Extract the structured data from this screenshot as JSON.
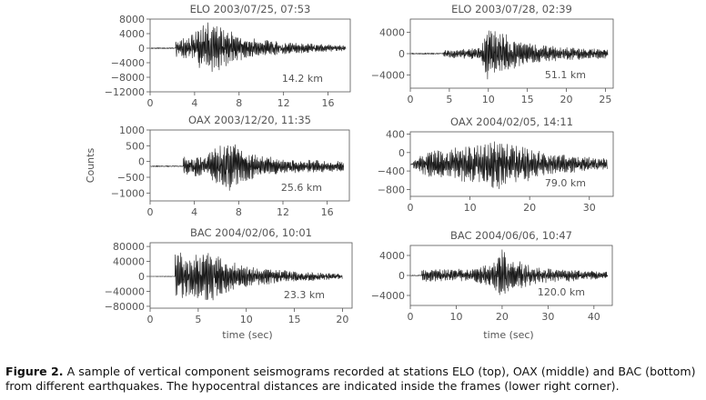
{
  "figure": {
    "y_axis_label": "Counts",
    "x_axis_label": "time (sec)"
  },
  "caption": {
    "label": "Figure 2.",
    "text": "A sample of vertical component seismograms recorded at stations ELO (top), OAX (middle) and BAC (bottom) from different earthquakes. The hypocentral distances are indicated inside the frames (lower right corner)."
  },
  "chart_data": [
    {
      "type": "line",
      "title": "ELO 2003/07/25, 07:53",
      "distance": "14.2 km",
      "xlabel": "",
      "ylabel": "",
      "xlim": [
        0,
        18
      ],
      "ylim": [
        -12000,
        8000
      ],
      "xticks": [
        0,
        4,
        8,
        12,
        16
      ],
      "yticks": [
        -12000,
        -8000,
        -4000,
        0,
        4000,
        8000
      ],
      "ytick_labels": [
        "−12000",
        "−8000",
        "−4000",
        "0",
        "4000",
        "8000"
      ],
      "series": [
        {
          "name": "ELO vertical",
          "onset": 2.3,
          "end": 17.6,
          "noise": 200,
          "envelope": [
            [
              2.3,
              2500
            ],
            [
              3.5,
              3000
            ],
            [
              4.5,
              7000
            ],
            [
              5.5,
              7500
            ],
            [
              6.5,
              6000
            ],
            [
              8,
              3500
            ],
            [
              10,
              2500
            ],
            [
              13,
              1500
            ],
            [
              17.6,
              800
            ]
          ],
          "seed": 11
        }
      ]
    },
    {
      "type": "line",
      "title": "ELO 2003/07/28, 02:39",
      "distance": "51.1 km",
      "xlabel": "",
      "ylabel": "",
      "xlim": [
        0,
        26
      ],
      "ylim": [
        -6500,
        6500
      ],
      "xticks": [
        0,
        5,
        10,
        15,
        20,
        25
      ],
      "yticks": [
        -4000,
        0,
        4000
      ],
      "ytick_labels": [
        "−4000",
        "0",
        "4000"
      ],
      "series": [
        {
          "name": "ELO vertical",
          "onset": 4.2,
          "end": 25.3,
          "noise": 150,
          "envelope": [
            [
              4.2,
              600
            ],
            [
              6,
              900
            ],
            [
              9,
              1200
            ],
            [
              10,
              5500
            ],
            [
              11,
              5000
            ],
            [
              13,
              3000
            ],
            [
              16,
              1800
            ],
            [
              20,
              1300
            ],
            [
              25.3,
              900
            ]
          ],
          "seed": 23
        }
      ]
    },
    {
      "type": "line",
      "title": "OAX 2003/12/20, 11:35",
      "distance": "25.6 km",
      "xlabel": "",
      "ylabel": "Counts",
      "xlim": [
        0,
        18
      ],
      "ylim": [
        -1250,
        1000
      ],
      "xticks": [
        0,
        4,
        8,
        12,
        16
      ],
      "yticks": [
        -1000,
        -500,
        0,
        500,
        1000
      ],
      "ytick_labels": [
        "−1000",
        "−500",
        "0",
        "500",
        "1000"
      ],
      "series": [
        {
          "name": "OAX vertical",
          "onset": 3.0,
          "end": 17.5,
          "noise": 20,
          "baseline": -150,
          "envelope": [
            [
              3.0,
              300
            ],
            [
              5,
              350
            ],
            [
              7,
              900
            ],
            [
              8,
              600
            ],
            [
              10,
              350
            ],
            [
              13,
              220
            ],
            [
              17.5,
              180
            ]
          ],
          "seed": 37
        }
      ]
    },
    {
      "type": "line",
      "title": "OAX 2004/02/05, 14:11",
      "distance": "79.0 km",
      "xlabel": "",
      "ylabel": "",
      "xlim": [
        0,
        34
      ],
      "ylim": [
        -950,
        450
      ],
      "xticks": [
        0,
        10,
        20,
        30
      ],
      "yticks": [
        -800,
        -400,
        0,
        400
      ],
      "ytick_labels": [
        "−800",
        "−400",
        "0",
        "400"
      ],
      "series": [
        {
          "name": "OAX vertical",
          "onset": 0.5,
          "end": 33.0,
          "noise": 30,
          "baseline": -250,
          "envelope": [
            [
              0.5,
              120
            ],
            [
              3,
              300
            ],
            [
              8,
              380
            ],
            [
              12,
              450
            ],
            [
              14,
              650
            ],
            [
              16,
              500
            ],
            [
              22,
              300
            ],
            [
              28,
              180
            ],
            [
              33,
              120
            ]
          ],
          "seed": 53
        }
      ]
    },
    {
      "type": "line",
      "title": "BAC 2004/02/06, 10:01",
      "distance": "23.3 km",
      "xlabel": "time (sec)",
      "ylabel": "",
      "xlim": [
        0,
        21
      ],
      "ylim": [
        -85000,
        90000
      ],
      "xticks": [
        0,
        5,
        10,
        15,
        20
      ],
      "yticks": [
        -80000,
        -40000,
        0,
        40000,
        80000
      ],
      "ytick_labels": [
        "−80000",
        "−40000",
        "0",
        "40000",
        "80000"
      ],
      "series": [
        {
          "name": "BAC vertical",
          "onset": 2.6,
          "end": 20.0,
          "noise": 800,
          "envelope": [
            [
              2.6,
              85000
            ],
            [
              4,
              50000
            ],
            [
              6,
              75000
            ],
            [
              8,
              45000
            ],
            [
              11,
              25000
            ],
            [
              15,
              15000
            ],
            [
              20,
              8000
            ]
          ],
          "seed": 71
        }
      ]
    },
    {
      "type": "line",
      "title": "BAC 2004/06/06, 10:47",
      "distance": "120.0 km",
      "xlabel": "time (sec)",
      "ylabel": "",
      "xlim": [
        0,
        44
      ],
      "ylim": [
        -6000,
        6000
      ],
      "xticks": [
        0,
        10,
        20,
        30,
        40
      ],
      "yticks": [
        -4000,
        0,
        4000
      ],
      "ytick_labels": [
        "−4000",
        "0",
        "4000"
      ],
      "series": [
        {
          "name": "BAC vertical",
          "onset": 2.5,
          "end": 43.0,
          "noise": 100,
          "envelope": [
            [
              2.5,
              1200
            ],
            [
              8,
              1400
            ],
            [
              13,
              1300
            ],
            [
              18,
              2500
            ],
            [
              20,
              5500
            ],
            [
              22,
              3500
            ],
            [
              27,
              1800
            ],
            [
              35,
              1200
            ],
            [
              43,
              800
            ]
          ],
          "seed": 97
        }
      ]
    }
  ]
}
